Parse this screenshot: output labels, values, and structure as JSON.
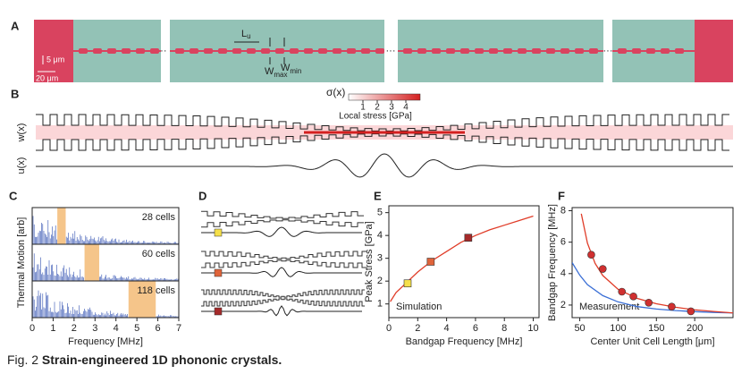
{
  "panel_labels": [
    "A",
    "B",
    "C",
    "D",
    "E",
    "F"
  ],
  "panel_a": {
    "scale_y": "5 μm",
    "scale_x": "20 μm",
    "unit_length": "L",
    "unit_length_sub": "u",
    "w_max": "W",
    "w_max_sub": "max",
    "w_min": "W",
    "w_min_sub": "min",
    "ellipsis": "···"
  },
  "panel_b": {
    "stress_symbol": "σ(x)",
    "colorbar_lim": [
      0,
      5
    ],
    "colorbar_ticks": [
      1,
      2,
      3,
      4
    ],
    "colorbar_label": "Local stress [GPa]",
    "width_label": "w(x)",
    "displacement_label": "u(x)"
  },
  "chart_data": [
    {
      "type": "spectrum",
      "xlabel": "Frequency [MHz]",
      "ylabel": "Thermal Motion [arb]",
      "xlim": [
        0,
        7
      ],
      "xticks": [
        0,
        1,
        2,
        3,
        4,
        5,
        6,
        7
      ],
      "color": "#2f4fb0",
      "band_color": "#f5c58a",
      "series": [
        {
          "name": "28 cells",
          "band": [
            1.2,
            1.6
          ]
        },
        {
          "name": "60 cells",
          "band": [
            2.5,
            3.2
          ]
        },
        {
          "name": "118 cells",
          "band": [
            4.6,
            5.9
          ]
        }
      ]
    },
    {
      "type": "line",
      "xlabel": "Bandgap Frequency [MHz]",
      "ylabel": "Peak Stress [GPa]",
      "annotation": "Simulation",
      "xlim": [
        0,
        10.4
      ],
      "xticks": [
        0,
        2,
        4,
        6,
        8,
        10
      ],
      "ylim": [
        0.4,
        5.3
      ],
      "yticks": [
        1,
        2,
        3,
        4,
        5
      ],
      "series": [
        {
          "mode": "line",
          "color": "#e03c28",
          "x": [
            0.1,
            0.5,
            1,
            2,
            3,
            4,
            5,
            6,
            7,
            8,
            9,
            10
          ],
          "values": [
            1.1,
            1.5,
            1.8,
            2.4,
            2.9,
            3.3,
            3.7,
            4.0,
            4.25,
            4.45,
            4.65,
            4.85
          ]
        },
        {
          "mode": "markers",
          "marker": "square",
          "colors": [
            "#f5e04a",
            "#e0643a",
            "#a52a2a"
          ],
          "x": [
            1.3,
            2.9,
            5.5
          ],
          "values": [
            1.9,
            2.85,
            3.9
          ]
        }
      ]
    },
    {
      "type": "line",
      "xlabel": "Center Unit Cell Length [μm]",
      "ylabel": "Bandgap Frequency [MHz]",
      "annotation": "Measurement",
      "xlim": [
        40,
        250
      ],
      "xticks": [
        50,
        100,
        150,
        200
      ],
      "ylim": [
        1.2,
        8.2
      ],
      "yticks": [
        2,
        4,
        6,
        8
      ],
      "series": [
        {
          "mode": "line",
          "color": "#3b6fd6",
          "x": [
            40,
            50,
            60,
            80,
            100,
            125,
            150,
            175,
            200,
            225,
            250
          ],
          "values": [
            4.7,
            3.9,
            3.3,
            2.6,
            2.2,
            1.9,
            1.75,
            1.65,
            1.58,
            1.53,
            1.5
          ]
        },
        {
          "mode": "line",
          "color": "#e03c28",
          "x": [
            52,
            60,
            70,
            80,
            100,
            125,
            150,
            175,
            200,
            225,
            250
          ],
          "values": [
            7.81,
            5.94,
            4.65,
            3.88,
            3.0,
            2.42,
            2.08,
            1.86,
            1.7,
            1.59,
            1.5
          ]
        },
        {
          "mode": "markers",
          "marker": "circle",
          "colors": [
            "#d03030",
            "#d03030",
            "#d03030",
            "#d03030",
            "#d03030",
            "#d03030",
            "#d03030"
          ],
          "x": [
            65,
            80,
            105,
            120,
            140,
            170,
            195
          ],
          "values": [
            5.2,
            4.3,
            2.85,
            2.55,
            2.15,
            1.9,
            1.6
          ]
        }
      ]
    }
  ],
  "caption": {
    "number": "Fig. 2",
    "title": "Strain-engineered 1D phononic crystals."
  }
}
